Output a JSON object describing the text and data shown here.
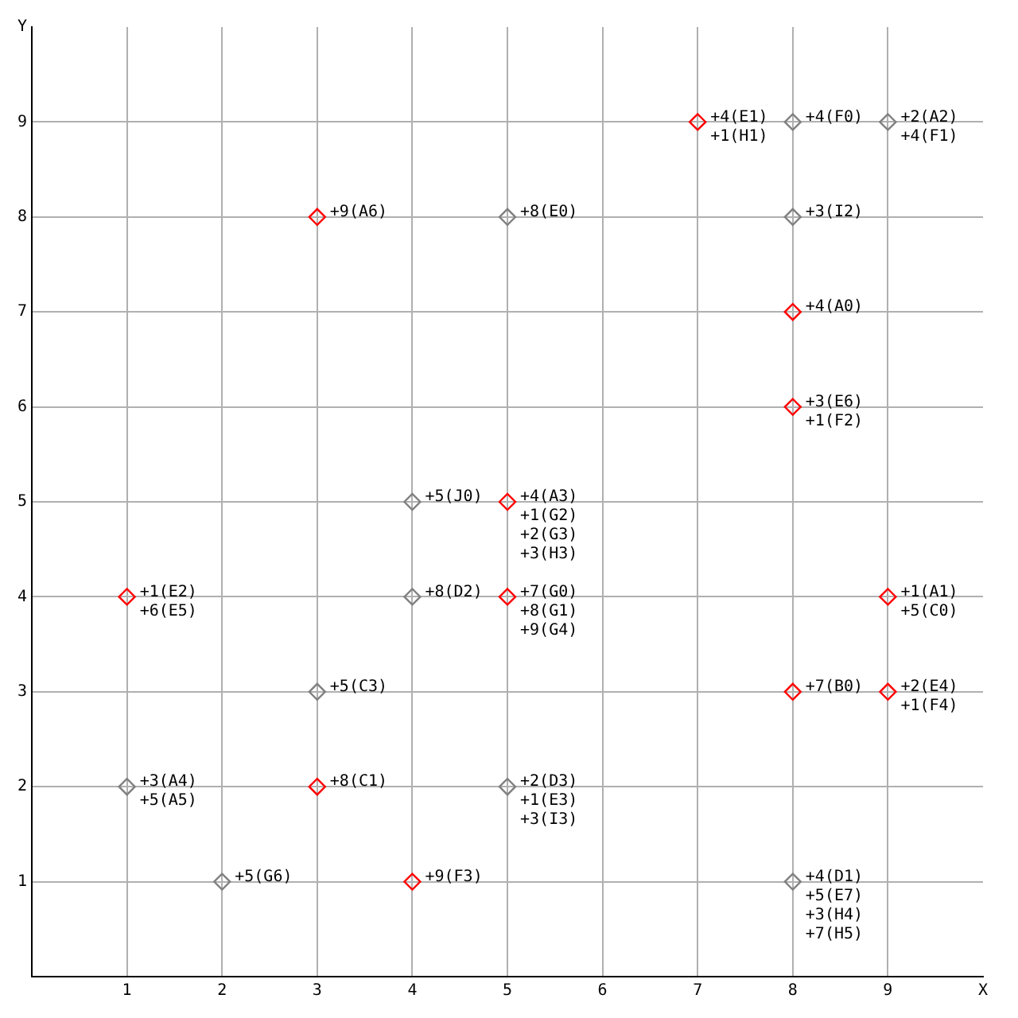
{
  "chart_data": {
    "type": "scatter",
    "marker": "diamond",
    "grid": true,
    "xlim": [
      0,
      10
    ],
    "ylim": [
      0,
      10
    ],
    "xticks": [
      1,
      2,
      3,
      4,
      5,
      6,
      7,
      8,
      9,
      {
        "value": 10,
        "label": "X"
      }
    ],
    "yticks": [
      1,
      2,
      3,
      4,
      5,
      6,
      7,
      8,
      9,
      {
        "value": 10,
        "label": "Y"
      }
    ],
    "series": [
      {
        "color": "#ff0000",
        "x": [
          7,
          3,
          8,
          8,
          5,
          1,
          5,
          9,
          8,
          9,
          3,
          4
        ],
        "values": [
          9,
          8,
          7,
          6,
          5,
          4,
          4,
          4,
          3,
          3,
          2,
          1
        ]
      },
      {
        "color": "#808080",
        "x": [
          8,
          9,
          5,
          8,
          4,
          4,
          3,
          1,
          5,
          2,
          8
        ],
        "values": [
          9,
          9,
          8,
          8,
          5,
          4,
          3,
          2,
          2,
          1,
          1
        ]
      }
    ],
    "annotations": [
      {
        "text": "+4(E1)",
        "x": 7,
        "y": 9
      },
      {
        "text": "+1(H1)",
        "x": 7,
        "y": 9
      },
      {
        "text": "+4(F0)",
        "x": 8,
        "y": 9
      },
      {
        "text": "+2(A2)",
        "x": 9,
        "y": 9
      },
      {
        "text": "+4(F1)",
        "x": 9,
        "y": 9
      },
      {
        "text": "+9(A6)",
        "x": 3,
        "y": 8
      },
      {
        "text": "+8(E0)",
        "x": 5,
        "y": 8
      },
      {
        "text": "+3(I2)",
        "x": 8,
        "y": 8
      },
      {
        "text": "+4(A0)",
        "x": 8,
        "y": 7
      },
      {
        "text": "+3(E6)",
        "x": 8,
        "y": 6
      },
      {
        "text": "+1(F2)",
        "x": 8,
        "y": 6
      },
      {
        "text": "+5(J0)",
        "x": 4,
        "y": 5
      },
      {
        "text": "+4(A3)",
        "x": 5,
        "y": 5
      },
      {
        "text": "+1(G2)",
        "x": 5,
        "y": 5
      },
      {
        "text": "+2(G3)",
        "x": 5,
        "y": 5
      },
      {
        "text": "+3(H3)",
        "x": 5,
        "y": 5
      },
      {
        "text": "+1(E2)",
        "x": 1,
        "y": 4
      },
      {
        "text": "+6(E5)",
        "x": 1,
        "y": 4
      },
      {
        "text": "+8(D2)",
        "x": 4,
        "y": 4
      },
      {
        "text": "+7(G0)",
        "x": 5,
        "y": 4
      },
      {
        "text": "+8(G1)",
        "x": 5,
        "y": 4
      },
      {
        "text": "+9(G4)",
        "x": 5,
        "y": 4
      },
      {
        "text": "+1(A1)",
        "x": 9,
        "y": 4
      },
      {
        "text": "+5(C0)",
        "x": 9,
        "y": 4
      },
      {
        "text": "+5(C3)",
        "x": 3,
        "y": 3
      },
      {
        "text": "+7(B0)",
        "x": 8,
        "y": 3
      },
      {
        "text": "+2(E4)",
        "x": 9,
        "y": 3
      },
      {
        "text": "+1(F4)",
        "x": 9,
        "y": 3
      },
      {
        "text": "+3(A4)",
        "x": 1,
        "y": 2
      },
      {
        "text": "+5(A5)",
        "x": 1,
        "y": 2
      },
      {
        "text": "+8(C1)",
        "x": 3,
        "y": 2
      },
      {
        "text": "+2(D3)",
        "x": 5,
        "y": 2
      },
      {
        "text": "+1(E3)",
        "x": 5,
        "y": 2
      },
      {
        "text": "+3(I3)",
        "x": 5,
        "y": 2
      },
      {
        "text": "+5(G6)",
        "x": 2,
        "y": 1
      },
      {
        "text": "+9(F3)",
        "x": 4,
        "y": 1
      },
      {
        "text": "+4(D1)",
        "x": 8,
        "y": 1
      },
      {
        "text": "+5(E7)",
        "x": 8,
        "y": 1
      },
      {
        "text": "+3(H4)",
        "x": 8,
        "y": 1
      },
      {
        "text": "+7(H5)",
        "x": 8,
        "y": 1
      }
    ]
  }
}
